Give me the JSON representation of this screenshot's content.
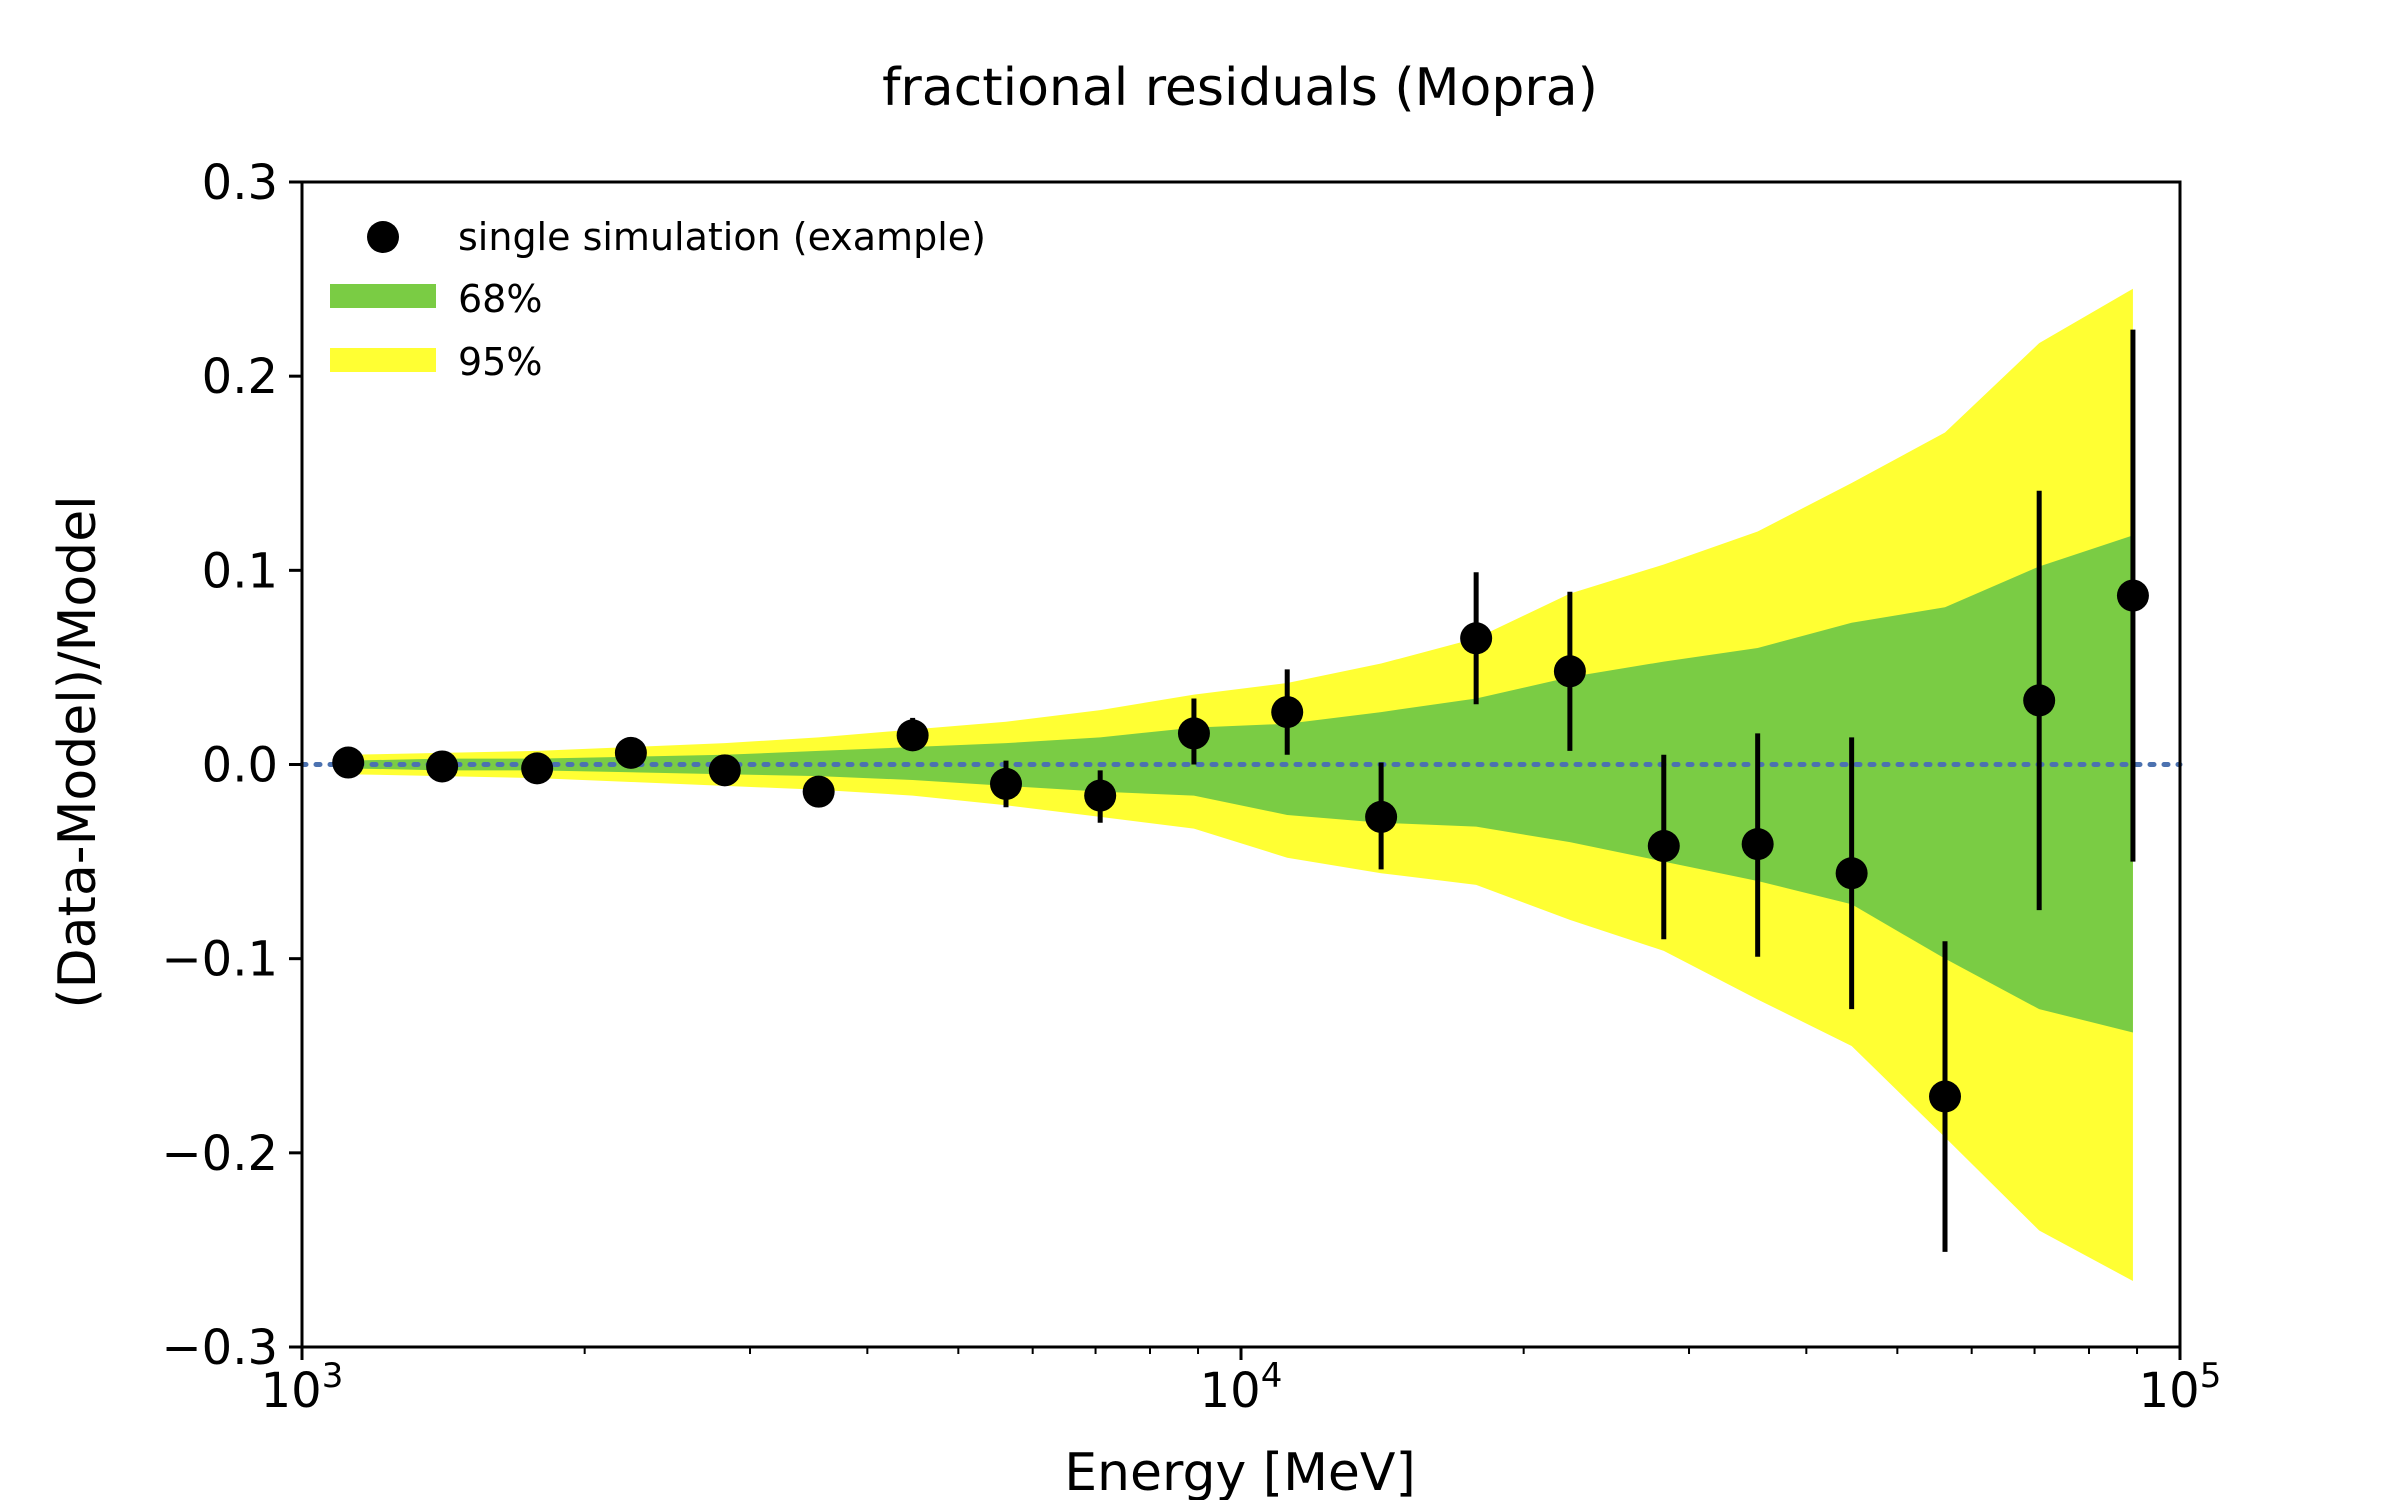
{
  "chart_data": {
    "type": "scatter",
    "title": "fractional residuals (Mopra)",
    "xlabel": "Energy [MeV]",
    "ylabel": "(Data-Model)/Model",
    "xscale": "log",
    "xlim": [
      1000,
      100000
    ],
    "ylim": [
      -0.3,
      0.3
    ],
    "yticks": [
      -0.3,
      -0.2,
      -0.1,
      0.0,
      0.1,
      0.2,
      0.3
    ],
    "ytick_labels": [
      "−0.3",
      "−0.2",
      "−0.1",
      "0.0",
      "0.1",
      "0.2",
      "0.3"
    ],
    "xticks": [
      {
        "value": 1000,
        "base": "10",
        "exp": "3"
      },
      {
        "value": 10000,
        "base": "10",
        "exp": "4"
      },
      {
        "value": 100000,
        "base": "10",
        "exp": "5"
      }
    ],
    "legend_position": "top-left",
    "reference_line": {
      "y": 0.0,
      "style": "dotted",
      "color": "#4c72b0"
    },
    "bands": [
      {
        "name": "95%",
        "color": "#ffff33",
        "x": [
          1120,
          1410,
          1780,
          2240,
          2820,
          3550,
          4470,
          5620,
          7080,
          8910,
          11200,
          14100,
          17800,
          22400,
          28200,
          35500,
          44700,
          56200,
          70800,
          89100
        ],
        "lower": [
          -0.005,
          -0.006,
          -0.007,
          -0.009,
          -0.011,
          -0.013,
          -0.016,
          -0.021,
          -0.027,
          -0.033,
          -0.048,
          -0.056,
          -0.062,
          -0.08,
          -0.096,
          -0.121,
          -0.145,
          -0.192,
          -0.24,
          -0.266
        ],
        "upper": [
          0.005,
          0.006,
          0.007,
          0.009,
          0.011,
          0.014,
          0.018,
          0.022,
          0.028,
          0.036,
          0.042,
          0.052,
          0.065,
          0.088,
          0.103,
          0.12,
          0.145,
          0.171,
          0.217,
          0.245
        ]
      },
      {
        "name": "68%",
        "color": "#7acc44",
        "x": [
          1120,
          1410,
          1780,
          2240,
          2820,
          3550,
          4470,
          5620,
          7080,
          8910,
          11200,
          14100,
          17800,
          22400,
          28200,
          35500,
          44700,
          56200,
          70800,
          89100
        ],
        "lower": [
          -0.002,
          -0.003,
          -0.003,
          -0.004,
          -0.005,
          -0.006,
          -0.008,
          -0.011,
          -0.014,
          -0.016,
          -0.026,
          -0.03,
          -0.032,
          -0.04,
          -0.05,
          -0.06,
          -0.072,
          -0.1,
          -0.126,
          -0.138
        ],
        "upper": [
          0.002,
          0.003,
          0.003,
          0.004,
          0.005,
          0.007,
          0.009,
          0.011,
          0.014,
          0.019,
          0.021,
          0.027,
          0.034,
          0.045,
          0.053,
          0.06,
          0.073,
          0.081,
          0.102,
          0.118
        ]
      }
    ],
    "series": [
      {
        "name": "single simulation (example)",
        "color": "#000000",
        "x": [
          1120,
          1410,
          1780,
          2240,
          2820,
          3550,
          4470,
          5620,
          7080,
          8910,
          11200,
          14100,
          17800,
          22400,
          28200,
          35500,
          44700,
          56200,
          70800,
          89100
        ],
        "y": [
          0.001,
          -0.001,
          -0.002,
          0.006,
          -0.003,
          -0.014,
          0.015,
          -0.01,
          -0.016,
          0.016,
          0.027,
          -0.027,
          0.065,
          0.048,
          -0.042,
          -0.041,
          -0.056,
          -0.171,
          0.033,
          0.087
        ],
        "yerr_low": [
          0.001,
          0.001,
          0.001,
          0.002,
          0.002,
          0.002,
          0.008,
          0.012,
          0.014,
          0.016,
          0.022,
          0.027,
          0.034,
          0.041,
          0.048,
          0.058,
          0.07,
          0.08,
          0.108,
          0.137
        ],
        "yerr_high": [
          0.001,
          0.001,
          0.001,
          0.002,
          0.002,
          0.002,
          0.009,
          0.012,
          0.013,
          0.018,
          0.022,
          0.028,
          0.034,
          0.041,
          0.047,
          0.057,
          0.07,
          0.08,
          0.108,
          0.137
        ]
      }
    ]
  }
}
